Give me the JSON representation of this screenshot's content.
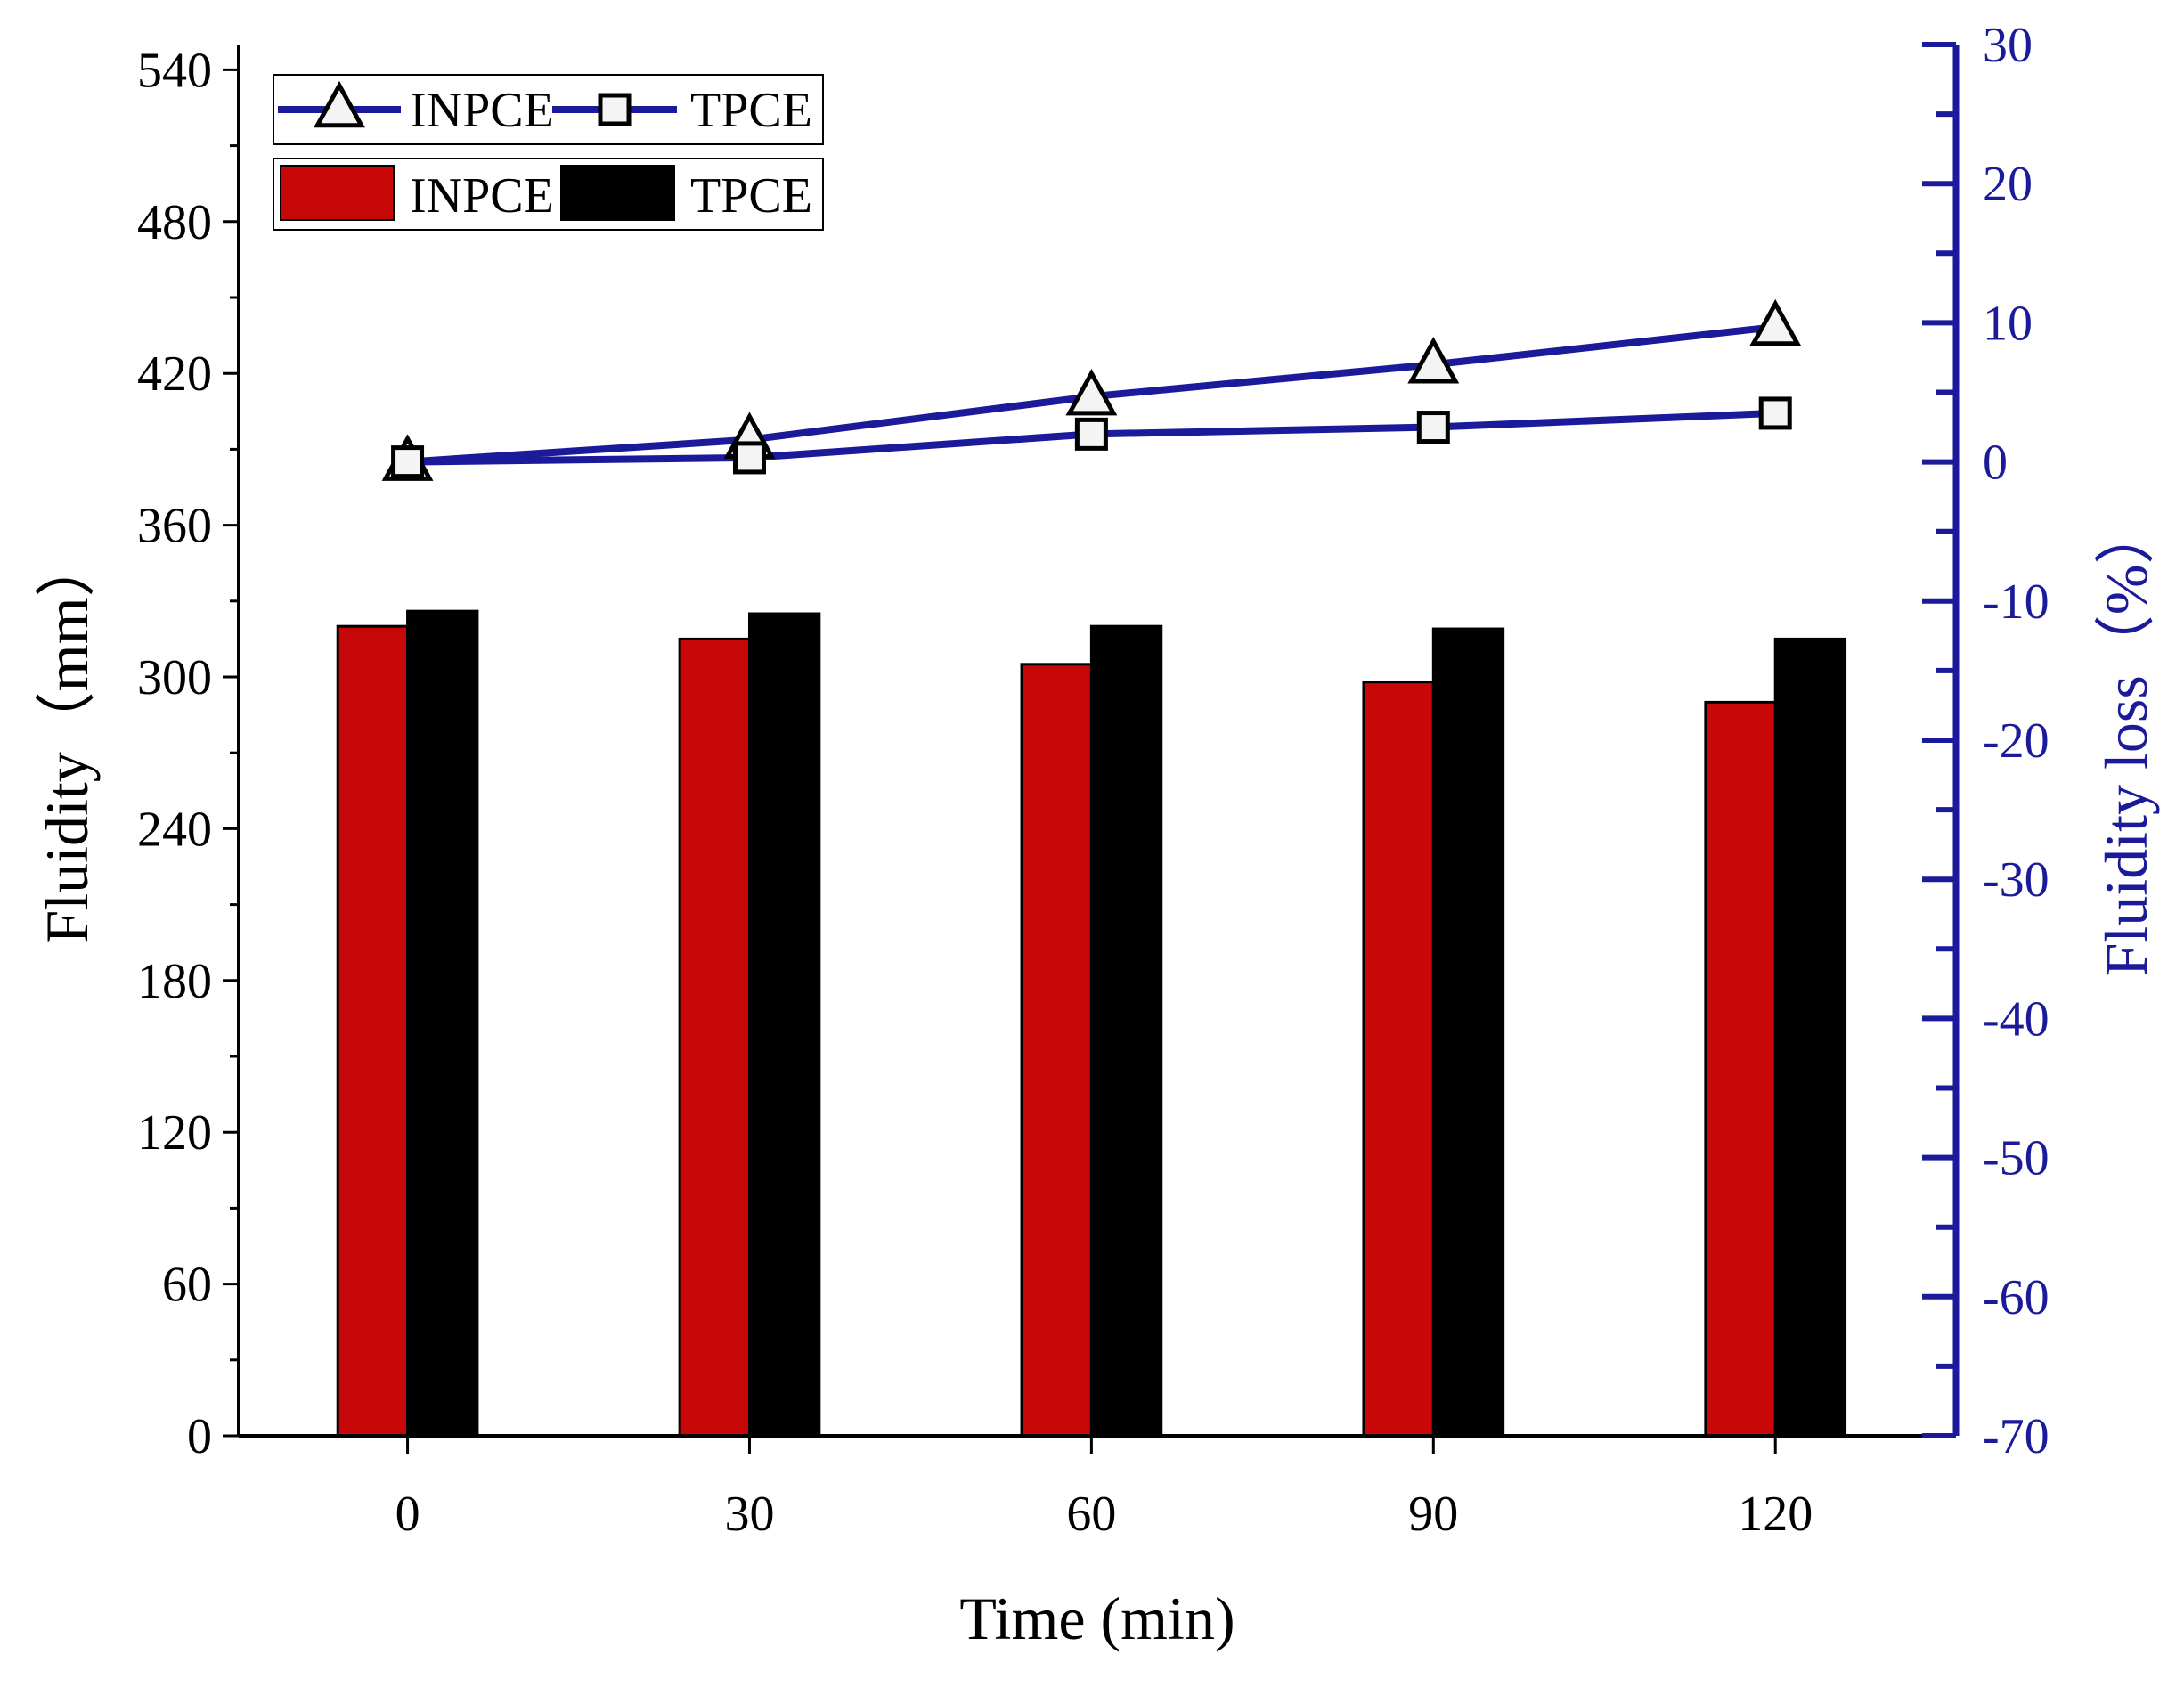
{
  "chart_data": {
    "type": "bar",
    "categories": [
      "0",
      "30",
      "60",
      "90",
      "120"
    ],
    "xlabel": "Time (min)",
    "ylabel": "Fluidity（mm）",
    "y2label": "Fluidity loss（%）",
    "ylim": [
      0,
      550
    ],
    "y2lim": [
      -70,
      30
    ],
    "yticks": [
      "0",
      "60",
      "120",
      "180",
      "240",
      "300",
      "360",
      "420",
      "480",
      "540"
    ],
    "y2ticks": [
      "-70",
      "-60",
      "-50",
      "-40",
      "-30",
      "-20",
      "-10",
      "0",
      "10",
      "20",
      "30"
    ],
    "grid": false,
    "bar_series": [
      {
        "name": "INPCE",
        "values": [
          320,
          315,
          305,
          298,
          290
        ],
        "color": "#c80808"
      },
      {
        "name": "TPCE",
        "values": [
          326,
          325,
          320,
          319,
          315
        ],
        "color": "#000000"
      }
    ],
    "line_series": [
      {
        "name": "INPCE",
        "marker": "triangle",
        "values": [
          0,
          1.6,
          4.7,
          7.0,
          9.7
        ],
        "color": "#1a1a9a"
      },
      {
        "name": "TPCE",
        "marker": "square",
        "values": [
          0,
          0.3,
          2.0,
          2.5,
          3.5
        ],
        "color": "#1a1a9a"
      }
    ],
    "legend_position": "top-left"
  }
}
